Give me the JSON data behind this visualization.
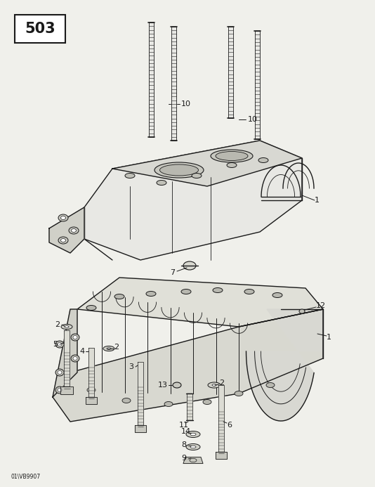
{
  "bg_color": "#f0f0eb",
  "line_color": "#1a1a1a",
  "watermark": "01\\VB9907",
  "fig_w": 5.34,
  "fig_h": 6.93,
  "dpi": 100
}
